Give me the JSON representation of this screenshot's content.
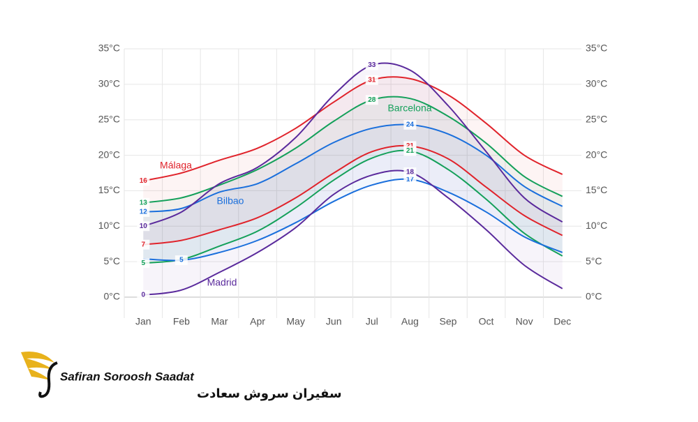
{
  "chart_data": {
    "type": "range-line",
    "categories": [
      "Jan",
      "Feb",
      "Mar",
      "Apr",
      "May",
      "Jun",
      "Jul",
      "Aug",
      "Sep",
      "Oct",
      "Nov",
      "Dec"
    ],
    "ylim": [
      0,
      35
    ],
    "yticks": [
      {
        "value": 0,
        "label": "0°C"
      },
      {
        "value": 5,
        "label": "5°C"
      },
      {
        "value": 10,
        "label": "10°C"
      },
      {
        "value": 15,
        "label": "15°C"
      },
      {
        "value": 20,
        "label": "20°C"
      },
      {
        "value": 25,
        "label": "25°C"
      },
      {
        "value": 30,
        "label": "30°C"
      },
      {
        "value": 35,
        "label": "35°C"
      }
    ],
    "grid": true,
    "series": [
      {
        "name": "Málaga",
        "color": "#e0232b",
        "high": [
          16.4,
          17.5,
          19.3,
          21,
          23.8,
          27.5,
          30.6,
          30.8,
          28.5,
          24.5,
          20,
          17.3
        ],
        "high_value_labels": [
          "16",
          null,
          null,
          null,
          null,
          null,
          "31",
          null,
          null,
          null,
          null,
          null
        ],
        "low": [
          7.4,
          8,
          9.5,
          11.2,
          14,
          17.5,
          20.5,
          21.3,
          19.5,
          15.5,
          11.5,
          8.7
        ],
        "low_value_labels": [
          "7",
          null,
          null,
          null,
          null,
          null,
          null,
          "21",
          null,
          null,
          null,
          null
        ]
      },
      {
        "name": "Barcelona",
        "color": "#14a05a",
        "high": [
          13.3,
          14,
          15.8,
          18,
          21,
          24.8,
          27.8,
          28,
          25.5,
          21.7,
          17,
          14.2
        ],
        "high_value_labels": [
          "13",
          null,
          null,
          null,
          null,
          null,
          "28",
          null,
          null,
          null,
          null,
          null
        ],
        "low": [
          4.8,
          5.3,
          7.2,
          9.3,
          12.6,
          16.5,
          19.6,
          20.6,
          18,
          13.8,
          9,
          5.8
        ],
        "low_value_labels": [
          "5",
          null,
          null,
          null,
          null,
          null,
          null,
          "21",
          null,
          null,
          null,
          null
        ]
      },
      {
        "name": "Bilbao",
        "color": "#1a6fdc",
        "high": [
          12,
          12.5,
          14.8,
          16,
          18.8,
          21.8,
          23.8,
          24.3,
          23,
          20,
          15.6,
          12.8
        ],
        "high_value_labels": [
          "12",
          null,
          null,
          null,
          null,
          null,
          null,
          "24",
          null,
          null,
          null,
          null
        ],
        "low": [
          5.4,
          5.2,
          6.3,
          8,
          10.5,
          13.5,
          15.8,
          16.6,
          14.8,
          12,
          8.5,
          6.3
        ],
        "low_value_labels": [
          null,
          "5",
          null,
          null,
          null,
          null,
          null,
          "17",
          null,
          null,
          null,
          null
        ]
      },
      {
        "name": "Madrid",
        "color": "#5a2a9c",
        "high": [
          10,
          12,
          16,
          18.3,
          22.5,
          28.5,
          32.7,
          32,
          27,
          20.5,
          14,
          10.6
        ],
        "high_value_labels": [
          "10",
          null,
          null,
          null,
          null,
          null,
          "33",
          null,
          null,
          null,
          null,
          null
        ],
        "low": [
          0.3,
          1,
          3.5,
          6.3,
          9.8,
          14.5,
          17.2,
          17.6,
          14,
          9.5,
          4.5,
          1.2
        ],
        "low_value_labels": [
          "0",
          null,
          null,
          null,
          null,
          null,
          null,
          "18",
          null,
          null,
          null,
          null
        ]
      }
    ]
  },
  "logo": {
    "name": "Safiran Soroosh Saadat",
    "name_fa": "سفیران سروش سعادت"
  }
}
